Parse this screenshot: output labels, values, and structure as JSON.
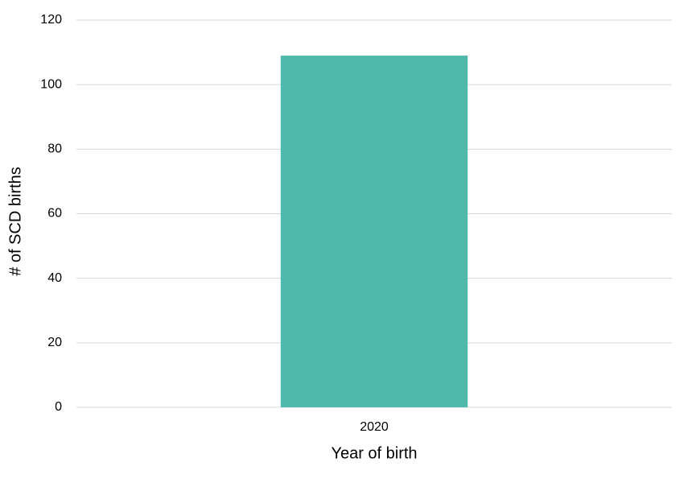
{
  "chart_data": {
    "type": "bar",
    "categories": [
      "2020"
    ],
    "values": [
      109
    ],
    "color": "#4fbaab",
    "x_label": "Year of birth",
    "y_label": "# of SCD births",
    "ylim": [
      0,
      120
    ],
    "yticks": [
      0,
      20,
      40,
      60,
      80,
      100,
      120
    ],
    "grid": true
  }
}
